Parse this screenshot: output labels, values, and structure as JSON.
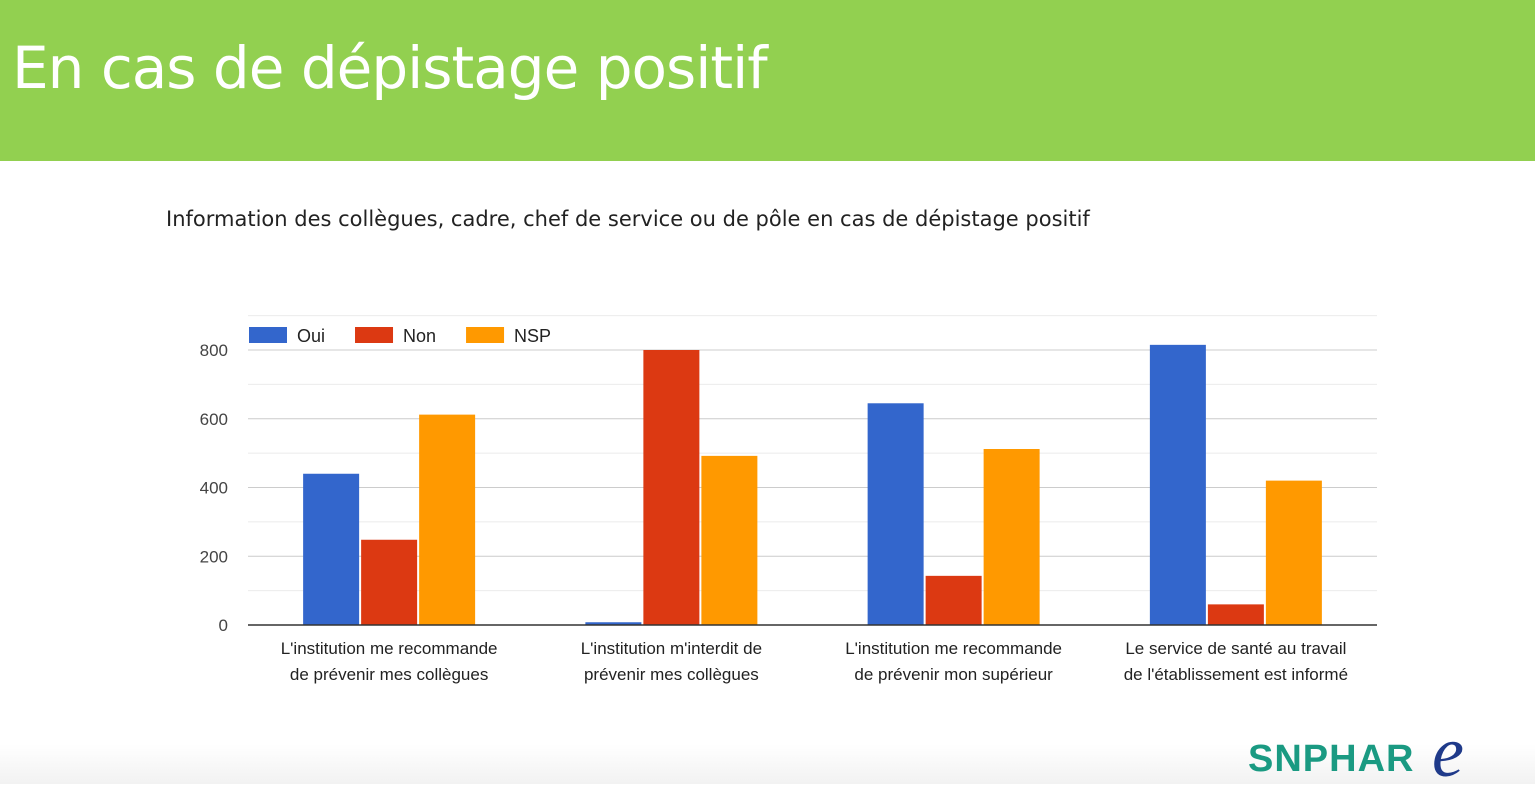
{
  "slide": {
    "title": "En cas de dépistage positif",
    "banner_color": "#92d050"
  },
  "chart_data": {
    "type": "bar",
    "title": "Information des collègues, cadre, chef de service ou de pôle en cas de dépistage positif",
    "categories": [
      [
        "L'institution me recommande",
        "de prévenir mes collègues"
      ],
      [
        "L'institution m'interdit de",
        "prévenir mes collègues"
      ],
      [
        "L'institution me recommande",
        "de prévenir mon supérieur"
      ],
      [
        "Le service de santé au travail",
        "de l'établissement est informé"
      ]
    ],
    "series": [
      {
        "name": "Oui",
        "color": "#3366cc",
        "values": [
          440,
          8,
          645,
          815
        ]
      },
      {
        "name": "Non",
        "color": "#dc3912",
        "values": [
          248,
          800,
          143,
          60
        ]
      },
      {
        "name": "NSP",
        "color": "#ff9900",
        "values": [
          612,
          492,
          512,
          420
        ]
      }
    ],
    "y_ticks": [
      0,
      200,
      400,
      600,
      800
    ],
    "ylim": [
      0,
      900
    ],
    "legend_position": "top-left",
    "grid": true
  },
  "logo": {
    "text": "SNPHAR",
    "suffix": "e",
    "text_color": "#1a9a82",
    "suffix_color": "#1f3a8a"
  }
}
